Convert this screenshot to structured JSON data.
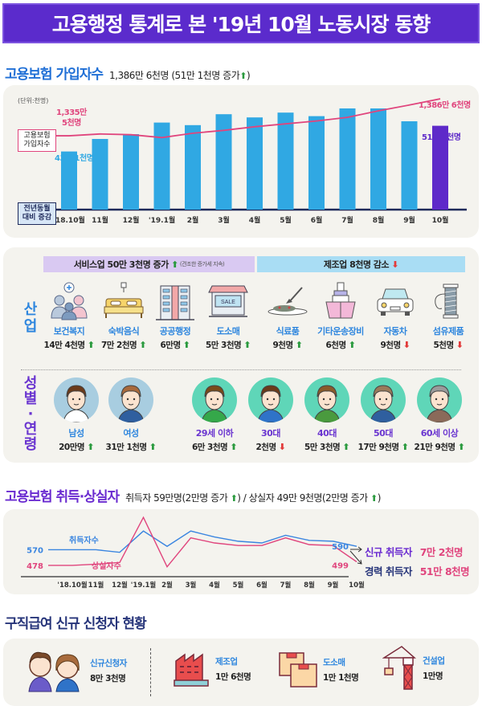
{
  "title": "고용행정 통계로 본 '19년 10월 노동시장 동향",
  "insured": {
    "heading": "고용보험 가입자수",
    "summary_value": "1,386만 6천명",
    "summary_change": "(51만 1천명 증가",
    "summary_close": ")",
    "unit": "(단위:천명)",
    "label_total": "고용보험 가입자수",
    "label_change": "전년동월 대비 증감",
    "first_total": "1,335만 5천명",
    "first_total_l1": "1,335만",
    "first_total_l2": "5천명",
    "last_total": "1,386만 6천명",
    "first_change": "43만 1천명",
    "last_change": "51만 1천명"
  },
  "chart_data": [
    {
      "type": "bar",
      "title": "고용보험 가입자수",
      "categories": [
        "'18.10월",
        "11월",
        "12월",
        "'19.1월",
        "2월",
        "3월",
        "4월",
        "5월",
        "6월",
        "7월",
        "8월",
        "9월",
        "10월"
      ],
      "series": [
        {
          "name": "전년동월 대비 증감 (천명)",
          "values": [
            431,
            470,
            485,
            521,
            513,
            547,
            537,
            552,
            541,
            565,
            565,
            525,
            511
          ]
        },
        {
          "name": "고용보험 가입자수 (만명)",
          "type": "line",
          "values": [
            1335.5,
            1338,
            1337,
            1333,
            1339,
            1343,
            1348,
            1352,
            1356,
            1361,
            1370,
            1378,
            1386.6
          ]
        }
      ],
      "highlight_last": true,
      "colors": {
        "bar": "#30a8e3",
        "bar_last": "#5e2ac9",
        "line": "#e0457d"
      }
    },
    {
      "type": "line",
      "title": "고용보험 취득·상실자",
      "categories": [
        "'18.10월",
        "11월",
        "12월",
        "'19.1월",
        "2월",
        "3월",
        "4월",
        "5월",
        "6월",
        "7월",
        "8월",
        "9월",
        "10월"
      ],
      "series": [
        {
          "name": "취득자수",
          "values": [
            570,
            570,
            555,
            680,
            590,
            680,
            645,
            620,
            610,
            655,
            625,
            620,
            590
          ],
          "color": "#3a85e0"
        },
        {
          "name": "상실자수",
          "values": [
            478,
            485,
            495,
            760,
            470,
            640,
            610,
            595,
            595,
            640,
            600,
            595,
            499
          ],
          "color": "#e0457d"
        }
      ],
      "start_labels": [
        "570",
        "478"
      ],
      "end_labels": [
        "590",
        "499"
      ]
    }
  ],
  "industry": {
    "label": "산업",
    "service_band": "서비스업 50만 3천명 증가",
    "service_note": "(견조한 증가세 지속)",
    "mfg_band": "제조업 8천명 감소",
    "items": [
      {
        "name": "보건복지",
        "value": "14만 4천명",
        "dir": "up",
        "icon": "family-care-icon"
      },
      {
        "name": "숙박음식",
        "value": "7만 2천명",
        "dir": "up",
        "icon": "bed-icon"
      },
      {
        "name": "공공행정",
        "value": "6만명",
        "dir": "up",
        "icon": "building-icon"
      },
      {
        "name": "도소매",
        "value": "5만 3천명",
        "dir": "up",
        "icon": "store-icon"
      },
      {
        "name": "식료품",
        "value": "9천명",
        "dir": "up",
        "icon": "food-plate-icon"
      },
      {
        "name": "기타운송장비",
        "value": "6천명",
        "dir": "up",
        "icon": "ship-icon"
      },
      {
        "name": "자동차",
        "value": "9천명",
        "dir": "down",
        "icon": "car-icon"
      },
      {
        "name": "섬유제품",
        "value": "5천명",
        "dir": "down",
        "icon": "thread-spool-icon"
      }
    ]
  },
  "demographic": {
    "label_l1": "성",
    "label_l2": "별",
    "label_dot": "·",
    "label_l3": "연",
    "label_l4": "령",
    "items": [
      {
        "name": "남성",
        "value": "20만명",
        "dir": "up",
        "color": "#2e86de",
        "bg": "#a8cde0",
        "icon": "man-avatar-icon"
      },
      {
        "name": "여성",
        "value": "31만 1천명",
        "dir": "up",
        "color": "#2e86de",
        "bg": "#a8cde0",
        "icon": "woman-avatar-icon"
      },
      {
        "name": "29세 이하",
        "value": "6만 3천명",
        "dir": "up",
        "color": "#6a35d0",
        "bg": "#5fd6b8",
        "icon": "young-man-avatar-icon"
      },
      {
        "name": "30대",
        "value": "2천명",
        "dir": "down",
        "color": "#6a35d0",
        "bg": "#5fd6b8",
        "icon": "woman-30s-avatar-icon"
      },
      {
        "name": "40대",
        "value": "5만 3천명",
        "dir": "up",
        "color": "#6a35d0",
        "bg": "#5fd6b8",
        "icon": "man-40s-avatar-icon"
      },
      {
        "name": "50대",
        "value": "17만 9천명",
        "dir": "up",
        "color": "#6a35d0",
        "bg": "#5fd6b8",
        "icon": "woman-50s-avatar-icon"
      },
      {
        "name": "60세 이상",
        "value": "21만 9천명",
        "dir": "up",
        "color": "#6a35d0",
        "bg": "#5fd6b8",
        "icon": "elder-avatar-icon"
      }
    ]
  },
  "flows": {
    "heading": "고용보험 취득·상실자",
    "summary_a": "취득자 59만명",
    "summary_a_change": "(2만명 증가",
    "summary_sep": ") / 상실자 49만 9천명",
    "summary_b_change": "(2만명 증가",
    "summary_close": ")",
    "series_a_label": "취득자수",
    "series_b_label": "상실자수",
    "new_label": "신규 취득자",
    "new_value": "7만 2천명",
    "career_label": "경력 취득자",
    "career_value": "51만 8천명"
  },
  "benefits": {
    "heading": "구직급여 신규 신청자 현황",
    "items": [
      {
        "name": "신규신청자",
        "value": "8만 3천명",
        "icon": "applicants-icon"
      },
      {
        "name": "제조업",
        "value": "1만 6천명",
        "icon": "factory-icon"
      },
      {
        "name": "도소매",
        "value": "1만 1천명",
        "icon": "boxes-icon"
      },
      {
        "name": "건설업",
        "value": "1만명",
        "icon": "crane-icon"
      }
    ]
  },
  "colors": {
    "title_bg": "#5b2bcc",
    "heading_blue": "#1f6fd6",
    "heading_purple": "#6a2bd0",
    "heading_navy": "#27357a",
    "pink": "#e0457d",
    "up": "#2a9a3e",
    "down": "#e23b3b",
    "service_band": "#d9c9f2",
    "mfg_band": "#a9ddf4"
  }
}
